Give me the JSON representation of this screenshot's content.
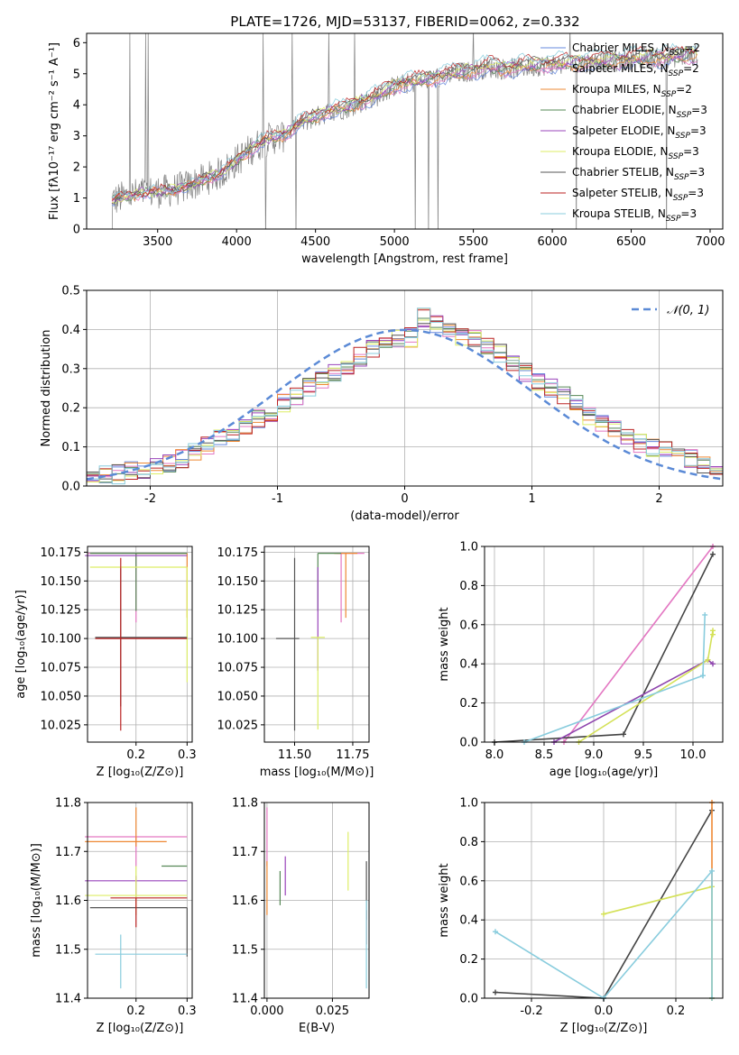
{
  "colors": [
    "#6688dd",
    "#444444",
    "#ee8833",
    "#558855",
    "#9944bb",
    "#ddee66",
    "#555555",
    "#bb2222",
    "#88ccdd"
  ],
  "pink": "#e377c2",
  "title": "PLATE=1726, MJD=53137, FIBERID=0062, z=0.332",
  "chart_data": [
    {
      "id": "spectrum",
      "type": "line",
      "xlabel": "wavelength [Angstrom, rest frame]",
      "ylabel": "Flux [fλ10⁻¹⁷ erg cm⁻² s⁻¹ A⁻¹]",
      "xlim": [
        3050,
        7080
      ],
      "ylim": [
        0,
        6.3
      ],
      "xticks": [
        3500,
        4000,
        4500,
        5000,
        5500,
        6000,
        6500,
        7000
      ],
      "yticks": [
        0,
        1,
        2,
        3,
        4,
        5,
        6
      ],
      "grid": false,
      "legend_position": "upper right",
      "legend": [
        {
          "label": "Chabrier MILES, N_SSP=2"
        },
        {
          "label": "Salpeter MILES, N_SSP=2"
        },
        {
          "label": "Kroupa MILES, N_SSP=2"
        },
        {
          "label": "Chabrier ELODIE, N_SSP=3"
        },
        {
          "label": "Salpeter ELODIE, N_SSP=3"
        },
        {
          "label": "Kroupa ELODIE, N_SSP=3"
        },
        {
          "label": "Chabrier STELIB, N_SSP=3"
        },
        {
          "label": "Salpeter STELIB, N_SSP=3"
        },
        {
          "label": "Kroupa STELIB, N_SSP=3"
        }
      ],
      "model_x": [
        3200,
        3300,
        3400,
        3500,
        3600,
        3700,
        3800,
        3900,
        4000,
        4100,
        4200,
        4300,
        4400,
        4500,
        4600,
        4700,
        4800,
        4900,
        5000,
        5100,
        5200,
        5300,
        5400,
        5500,
        5600,
        5700,
        5800,
        5900,
        6000,
        6100,
        6200,
        6300,
        6400,
        6500,
        6600,
        6700,
        6800,
        6900
      ],
      "model_y": [
        0.9,
        1.05,
        1.15,
        1.2,
        1.25,
        1.4,
        1.6,
        1.8,
        2.2,
        2.6,
        2.9,
        3.0,
        3.4,
        3.6,
        3.8,
        3.9,
        4.1,
        4.3,
        4.6,
        4.7,
        4.8,
        4.9,
        5.0,
        5.1,
        5.2,
        5.15,
        5.2,
        5.25,
        5.3,
        5.3,
        5.35,
        5.4,
        5.4,
        5.45,
        5.5,
        5.5,
        5.55,
        5.6
      ]
    },
    {
      "id": "residual_hist",
      "type": "line",
      "xlabel": "(data-model)/error",
      "ylabel": "Normed distribution",
      "xlim": [
        -2.5,
        2.5
      ],
      "ylim": [
        0,
        0.5
      ],
      "xticks": [
        -2,
        -1,
        0,
        1,
        2
      ],
      "yticks": [
        0.0,
        0.1,
        0.2,
        0.3,
        0.4,
        0.5
      ],
      "grid": true,
      "legend_position": "upper right",
      "legend_label": "𝒩(0, 1)",
      "bin_edges": [
        -2.5,
        -2.4,
        -2.3,
        -2.2,
        -2.1,
        -2.0,
        -1.9,
        -1.8,
        -1.7,
        -1.6,
        -1.5,
        -1.4,
        -1.3,
        -1.2,
        -1.1,
        -1.0,
        -0.9,
        -0.8,
        -0.7,
        -0.6,
        -0.5,
        -0.4,
        -0.3,
        -0.2,
        -0.1,
        0.0,
        0.1,
        0.2,
        0.3,
        0.4,
        0.5,
        0.6,
        0.7,
        0.8,
        0.9,
        1.0,
        1.1,
        1.2,
        1.3,
        1.4,
        1.5,
        1.6,
        1.7,
        1.8,
        1.9,
        2.0,
        2.1,
        2.2,
        2.3,
        2.4,
        2.5
      ],
      "hist_base": [
        0.02,
        0.03,
        0.03,
        0.04,
        0.04,
        0.05,
        0.06,
        0.07,
        0.09,
        0.1,
        0.12,
        0.13,
        0.15,
        0.17,
        0.19,
        0.21,
        0.23,
        0.25,
        0.27,
        0.29,
        0.31,
        0.33,
        0.35,
        0.37,
        0.38,
        0.38,
        0.43,
        0.41,
        0.4,
        0.38,
        0.38,
        0.36,
        0.34,
        0.32,
        0.29,
        0.27,
        0.25,
        0.23,
        0.21,
        0.18,
        0.16,
        0.15,
        0.13,
        0.11,
        0.1,
        0.1,
        0.08,
        0.07,
        0.05,
        0.04
      ]
    },
    {
      "id": "age_vs_Z",
      "type": "scatter",
      "xlabel": "Z [log₁₀(Z/Z⊙)]",
      "ylabel": "age  [log₁₀(age/yr)]",
      "xlim": [
        0.105,
        0.31
      ],
      "ylim": [
        10.01,
        10.18
      ],
      "xticks": [
        0.2,
        0.3
      ],
      "yticks": [
        10.025,
        10.05,
        10.075,
        10.1,
        10.125,
        10.15,
        10.175
      ],
      "grid": true,
      "points": [
        {
          "x": 0.2,
          "y": 10.174,
          "xerr": [
            0.095,
            0.1
          ],
          "yerr": [
            0.06,
            0
          ]
        },
        {
          "x": 0.3,
          "y": 10.174,
          "xerr": [
            0.1,
            0.0
          ],
          "yerr": [
            0.056,
            0
          ]
        },
        {
          "x": 0.2,
          "y": 10.174,
          "xerr": [
            0.09,
            0.1
          ],
          "yerr": [
            0.05,
            0
          ]
        },
        {
          "x": 0.2,
          "y": 10.172,
          "xerr": [
            0.1,
            0.1
          ],
          "yerr": [
            0,
            0
          ]
        },
        {
          "x": 0.3,
          "y": 10.162,
          "xerr": [
            0.19,
            0
          ],
          "yerr": [
            0.1,
            0
          ]
        },
        {
          "x": 0.17,
          "y": 10.101,
          "xerr": [
            0.05,
            0.13
          ],
          "yerr": [
            0.06,
            0.06
          ]
        },
        {
          "x": 0.17,
          "y": 10.1,
          "xerr": [
            0.05,
            0.13
          ],
          "yerr": [
            0.08,
            0.07
          ]
        }
      ]
    },
    {
      "id": "age_vs_mass",
      "type": "scatter",
      "xlabel": "mass [log₁₀(M/M⊙)]",
      "ylabel": "",
      "xlim": [
        11.37,
        11.82
      ],
      "ylim": [
        10.01,
        10.18
      ],
      "xticks": [
        11.5,
        11.75
      ],
      "yticks": [
        10.025,
        10.05,
        10.075,
        10.1,
        10.125,
        10.15,
        10.175
      ],
      "grid": true,
      "points": [
        {
          "x": 11.7,
          "y": 10.174,
          "xerr": [
            0.02,
            0.1
          ],
          "yerr": [
            0.06,
            0
          ]
        },
        {
          "x": 11.72,
          "y": 10.174,
          "xerr": [
            0.05,
            0.05
          ],
          "yerr": [
            0.056,
            0
          ]
        },
        {
          "x": 11.6,
          "y": 10.174,
          "xerr": [
            0.0,
            0.1
          ],
          "yerr": [
            0.05,
            0
          ]
        },
        {
          "x": 11.6,
          "y": 10.162,
          "xerr": [
            0.0,
            0.0
          ],
          "yerr": [
            0.09,
            0
          ]
        },
        {
          "x": 11.6,
          "y": 10.101,
          "xerr": [
            0.03,
            0.03
          ],
          "yerr": [
            0.08,
            0
          ]
        },
        {
          "x": 11.5,
          "y": 10.1,
          "xerr": [
            0.08,
            0.02
          ],
          "yerr": [
            0.08,
            0.07
          ]
        }
      ]
    },
    {
      "id": "weight_vs_age",
      "type": "line",
      "xlabel": "age  [log₁₀(age/yr)]",
      "ylabel": "mass weight",
      "xlim": [
        7.9,
        10.3
      ],
      "ylim": [
        0,
        1
      ],
      "xticks": [
        8.0,
        8.5,
        9.0,
        9.5,
        10.0
      ],
      "yticks": [
        0.0,
        0.2,
        0.4,
        0.6,
        0.8,
        1.0
      ],
      "grid": true,
      "series": [
        {
          "x": [
            8.7,
            10.2
          ],
          "y": [
            0.0,
            1.0
          ]
        },
        {
          "x": [
            8.0,
            9.3,
            10.2
          ],
          "y": [
            0.0,
            0.04,
            0.96
          ]
        },
        {
          "x": [
            8.6,
            10.15,
            10.2
          ],
          "y": [
            0.0,
            0.42,
            0.4
          ]
        },
        {
          "x": [
            8.85,
            10.15,
            10.2,
            10.2
          ],
          "y": [
            0.0,
            0.42,
            0.57,
            0.55
          ]
        },
        {
          "x": [
            8.3,
            10.1,
            10.12,
            10.1
          ],
          "y": [
            0.0,
            0.34,
            0.65,
            0.34
          ]
        }
      ]
    },
    {
      "id": "mass_vs_Z",
      "type": "scatter",
      "xlabel": "Z [log₁₀(Z/Z⊙)]",
      "ylabel": "mass [log₁₀(M/M⊙)]",
      "xlim": [
        0.105,
        0.31
      ],
      "ylim": [
        11.4,
        11.8
      ],
      "xticks": [
        0.2,
        0.3
      ],
      "yticks": [
        11.4,
        11.5,
        11.6,
        11.7,
        11.8
      ],
      "grid": true,
      "points": [
        {
          "x": 0.2,
          "y": 11.73,
          "xerr": [
            0.1,
            0.1
          ],
          "yerr": [
            0.06,
            0
          ]
        },
        {
          "x": 0.2,
          "y": 11.72,
          "xerr": [
            0.1,
            0.06
          ],
          "yerr": [
            0.01,
            0.07
          ]
        },
        {
          "x": 0.25,
          "y": 11.67,
          "xerr": [
            0.0,
            0.05
          ],
          "yerr": [
            0,
            0
          ]
        },
        {
          "x": 0.2,
          "y": 11.64,
          "xerr": [
            0.1,
            0.1
          ],
          "yerr": [
            0.07,
            0.01
          ]
        },
        {
          "x": 0.2,
          "y": 11.61,
          "xerr": [
            0.1,
            0.1
          ],
          "yerr": [
            0.04,
            0.06
          ]
        },
        {
          "x": 0.3,
          "y": 11.585,
          "xerr": [
            0.19,
            0
          ],
          "yerr": [
            0.1,
            0
          ]
        },
        {
          "x": 0.2,
          "y": 11.605,
          "xerr": [
            0.05,
            0.1
          ],
          "yerr": [
            0.06,
            0
          ]
        },
        {
          "x": 0.17,
          "y": 11.49,
          "xerr": [
            0.05,
            0.13
          ],
          "yerr": [
            0.07,
            0.04
          ]
        }
      ]
    },
    {
      "id": "mass_vs_EBV",
      "type": "scatter",
      "xlabel": "E(B-V)",
      "ylabel": "",
      "xlim": [
        -0.001,
        0.039
      ],
      "ylim": [
        11.4,
        11.8
      ],
      "xticks": [
        0.0,
        0.025
      ],
      "yticks": [
        11.4,
        11.5,
        11.6,
        11.7,
        11.8
      ],
      "grid": true,
      "points": [
        {
          "x": 0.0,
          "y": 11.73,
          "xerr": [
            0,
            0
          ],
          "yerr": [
            0.06,
            0.06
          ]
        },
        {
          "x": 0.0,
          "y": 11.62,
          "xerr": [
            0,
            0
          ],
          "yerr": [
            0.05,
            0.06
          ]
        },
        {
          "x": 0.005,
          "y": 11.62,
          "xerr": [
            0,
            0
          ],
          "yerr": [
            0.03,
            0.04
          ]
        },
        {
          "x": 0.007,
          "y": 11.63,
          "xerr": [
            0,
            0
          ],
          "yerr": [
            0.02,
            0.06
          ]
        },
        {
          "x": 0.031,
          "y": 11.68,
          "xerr": [
            0,
            0
          ],
          "yerr": [
            0.06,
            0.06
          ]
        },
        {
          "x": 0.038,
          "y": 11.62,
          "xerr": [
            0,
            0
          ],
          "yerr": [
            0.06,
            0.06
          ]
        },
        {
          "x": 0.038,
          "y": 11.55,
          "xerr": [
            0,
            0
          ],
          "yerr": [
            0.04,
            0.03
          ]
        },
        {
          "x": 0.038,
          "y": 11.5,
          "xerr": [
            0,
            0
          ],
          "yerr": [
            0.08,
            0.1
          ]
        }
      ]
    },
    {
      "id": "weight_vs_Z",
      "type": "line",
      "xlabel": "Z [log₁₀(Z/Z⊙)]",
      "ylabel": "mass weight",
      "xlim": [
        -0.33,
        0.33
      ],
      "ylim": [
        0,
        1
      ],
      "xticks": [
        -0.2,
        0.0,
        0.2
      ],
      "yticks": [
        0.0,
        0.2,
        0.4,
        0.6,
        0.8,
        1.0
      ],
      "grid": true,
      "series": [
        {
          "x": [
            -0.3,
            0.0,
            0.3
          ],
          "y": [
            0.03,
            0.0,
            0.96
          ]
        },
        {
          "x": [
            0.3,
            0.3
          ],
          "y": [
            0.0,
            1.0
          ]
        },
        {
          "x": [
            0.0,
            0.3,
            0.3
          ],
          "y": [
            0.43,
            0.57,
            0.0
          ]
        },
        {
          "x": [
            -0.3,
            0.0,
            0.3,
            0.3
          ],
          "y": [
            0.34,
            0.0,
            0.65,
            0.0
          ]
        }
      ]
    }
  ]
}
